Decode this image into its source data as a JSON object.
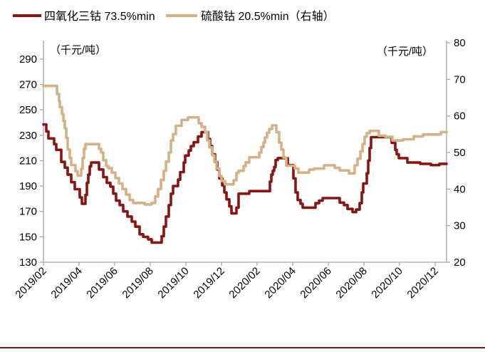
{
  "chart_data": {
    "type": "line",
    "legend": [
      {
        "label": "四氧化三钴 73.5%min"
      },
      {
        "label": "硫酸钴 20.5%min（右轴）"
      }
    ],
    "left_axis": {
      "unit_label": "（千元/吨）",
      "min": 130,
      "max": 290,
      "step": 20,
      "ticks": [
        130,
        150,
        170,
        190,
        210,
        230,
        250,
        270,
        290
      ]
    },
    "right_axis": {
      "unit_label": "（千元/吨）",
      "min": 20,
      "max": 80,
      "step": 10,
      "ticks": [
        20,
        30,
        40,
        50,
        60,
        70,
        80
      ]
    },
    "x_axis": {
      "tick_labels": [
        "2019/02",
        "2019/04",
        "2019/06",
        "2019/08",
        "2019/10",
        "2019/12",
        "2020/02",
        "2020/04",
        "2020/06",
        "2020/08",
        "2020/10",
        "2020/12"
      ],
      "tick_months": [
        1,
        3,
        5,
        7,
        9,
        11,
        13,
        15,
        17,
        19,
        21,
        23
      ],
      "month_origin_label": "2019/01"
    },
    "series": [
      {
        "name": "四氧化三钴 73.5%min",
        "axis": "left",
        "color": "#8A1410",
        "points": [
          [
            1.0,
            238.5
          ],
          [
            1.16,
            233
          ],
          [
            1.28,
            227.5
          ],
          [
            1.6,
            223
          ],
          [
            1.72,
            218.5
          ],
          [
            2.0,
            209
          ],
          [
            2.2,
            204.5
          ],
          [
            2.36,
            199
          ],
          [
            2.56,
            193
          ],
          [
            2.76,
            187.5
          ],
          [
            3.04,
            181
          ],
          [
            3.16,
            176
          ],
          [
            3.36,
            183
          ],
          [
            3.44,
            192.5
          ],
          [
            3.52,
            199
          ],
          [
            3.6,
            205.5
          ],
          [
            3.68,
            208.5
          ],
          [
            4.12,
            203
          ],
          [
            4.36,
            197
          ],
          [
            4.56,
            192.5
          ],
          [
            4.76,
            189.5
          ],
          [
            4.92,
            184
          ],
          [
            5.08,
            178.5
          ],
          [
            5.28,
            175
          ],
          [
            5.48,
            170
          ],
          [
            5.72,
            166
          ],
          [
            5.96,
            162
          ],
          [
            6.16,
            158
          ],
          [
            6.4,
            152
          ],
          [
            6.6,
            150
          ],
          [
            6.88,
            148
          ],
          [
            7.08,
            145.5
          ],
          [
            7.64,
            150.5
          ],
          [
            7.76,
            158
          ],
          [
            7.88,
            166
          ],
          [
            8.04,
            175
          ],
          [
            8.16,
            184
          ],
          [
            8.28,
            190
          ],
          [
            8.56,
            195
          ],
          [
            8.68,
            201
          ],
          [
            8.88,
            208.5
          ],
          [
            8.96,
            214
          ],
          [
            9.16,
            218
          ],
          [
            9.28,
            221.5
          ],
          [
            9.44,
            224.5
          ],
          [
            9.68,
            229
          ],
          [
            9.88,
            232.5
          ],
          [
            10.24,
            227
          ],
          [
            10.36,
            221.5
          ],
          [
            10.48,
            215
          ],
          [
            10.64,
            209
          ],
          [
            10.76,
            203
          ],
          [
            10.88,
            196
          ],
          [
            11.04,
            190.5
          ],
          [
            11.16,
            185
          ],
          [
            11.28,
            179.5
          ],
          [
            11.44,
            174
          ],
          [
            11.56,
            168.5
          ],
          [
            11.84,
            173
          ],
          [
            11.96,
            184
          ],
          [
            12.56,
            186
          ],
          [
            13.72,
            193.5
          ],
          [
            13.8,
            199
          ],
          [
            13.88,
            202
          ],
          [
            13.96,
            205
          ],
          [
            14.04,
            210.5
          ],
          [
            14.16,
            212
          ],
          [
            14.72,
            206.5
          ],
          [
            15.04,
            196
          ],
          [
            15.16,
            185
          ],
          [
            15.28,
            179
          ],
          [
            15.44,
            176
          ],
          [
            15.56,
            173
          ],
          [
            16.28,
            176.5
          ],
          [
            16.48,
            178.5
          ],
          [
            16.68,
            180.5
          ],
          [
            17.64,
            177
          ],
          [
            17.88,
            175
          ],
          [
            18.08,
            172
          ],
          [
            18.36,
            169.5
          ],
          [
            18.56,
            171.5
          ],
          [
            18.76,
            176.5
          ],
          [
            18.88,
            185
          ],
          [
            18.96,
            192
          ],
          [
            19.16,
            200
          ],
          [
            19.24,
            210
          ],
          [
            19.32,
            220
          ],
          [
            19.4,
            228.5
          ],
          [
            20.56,
            224
          ],
          [
            20.76,
            218.5
          ],
          [
            20.84,
            215
          ],
          [
            20.96,
            212
          ],
          [
            21.44,
            208.5
          ],
          [
            22.16,
            207.5
          ],
          [
            22.76,
            206.5
          ],
          [
            23.24,
            207.5
          ],
          [
            23.64,
            207.5
          ]
        ]
      },
      {
        "name": "硫酸钴 20.5%min（右轴）",
        "axis": "right",
        "color": "#D5B286",
        "points": [
          [
            1.0,
            68.2
          ],
          [
            1.76,
            66
          ],
          [
            1.88,
            64
          ],
          [
            1.92,
            62.4
          ],
          [
            2.04,
            60.5
          ],
          [
            2.12,
            58.6
          ],
          [
            2.2,
            56.6
          ],
          [
            2.28,
            54
          ],
          [
            2.36,
            50.8
          ],
          [
            2.48,
            48.5
          ],
          [
            2.56,
            46.6
          ],
          [
            2.8,
            44.9
          ],
          [
            2.92,
            43.7
          ],
          [
            3.12,
            45.5
          ],
          [
            3.2,
            48.5
          ],
          [
            3.28,
            51
          ],
          [
            3.36,
            52.3
          ],
          [
            4.12,
            51
          ],
          [
            4.24,
            50
          ],
          [
            4.36,
            47.9
          ],
          [
            4.52,
            46.3
          ],
          [
            4.64,
            45.7
          ],
          [
            4.84,
            44.5
          ],
          [
            5.04,
            43
          ],
          [
            5.24,
            41.5
          ],
          [
            5.44,
            40
          ],
          [
            5.64,
            38.5
          ],
          [
            5.84,
            37
          ],
          [
            6.04,
            36.2
          ],
          [
            6.68,
            35.8
          ],
          [
            7.08,
            36.2
          ],
          [
            7.28,
            38
          ],
          [
            7.44,
            40
          ],
          [
            7.6,
            42.5
          ],
          [
            7.76,
            45
          ],
          [
            7.88,
            47.5
          ],
          [
            8.04,
            50
          ],
          [
            8.16,
            53.3
          ],
          [
            8.28,
            55
          ],
          [
            8.44,
            57.3
          ],
          [
            8.76,
            58.9
          ],
          [
            9.12,
            59.6
          ],
          [
            9.72,
            58
          ],
          [
            9.88,
            57
          ],
          [
            10.08,
            55.6
          ],
          [
            10.2,
            53.3
          ],
          [
            10.32,
            51.4
          ],
          [
            10.48,
            49.2
          ],
          [
            10.6,
            47.5
          ],
          [
            10.72,
            45.6
          ],
          [
            10.88,
            43.6
          ],
          [
            11.0,
            42.2
          ],
          [
            11.2,
            41.3
          ],
          [
            11.68,
            42.4
          ],
          [
            11.84,
            44.4
          ],
          [
            11.96,
            45
          ],
          [
            12.24,
            46.3
          ],
          [
            12.36,
            47.3
          ],
          [
            12.56,
            48.7
          ],
          [
            13.12,
            50
          ],
          [
            13.24,
            51.5
          ],
          [
            13.36,
            52.7
          ],
          [
            13.44,
            54.1
          ],
          [
            13.56,
            55.4
          ],
          [
            13.68,
            56.4
          ],
          [
            13.84,
            57.4
          ],
          [
            14.08,
            55.6
          ],
          [
            14.24,
            52.7
          ],
          [
            14.36,
            50.8
          ],
          [
            14.48,
            48.6
          ],
          [
            14.64,
            46.4
          ],
          [
            15.12,
            45.6
          ],
          [
            15.32,
            44.5
          ],
          [
            15.92,
            45.3
          ],
          [
            16.2,
            45.6
          ],
          [
            16.76,
            46.5
          ],
          [
            17.36,
            45.8
          ],
          [
            17.64,
            45.1
          ],
          [
            18.16,
            44.3
          ],
          [
            18.48,
            46.5
          ],
          [
            18.64,
            48.3
          ],
          [
            18.8,
            50.3
          ],
          [
            18.92,
            52.3
          ],
          [
            19.04,
            54.3
          ],
          [
            19.16,
            55.3
          ],
          [
            19.32,
            55.9
          ],
          [
            19.84,
            54.6
          ],
          [
            20.2,
            54.3
          ],
          [
            20.6,
            53.3
          ],
          [
            21.2,
            53.6
          ],
          [
            21.8,
            54.4
          ],
          [
            22.32,
            54.9
          ],
          [
            23.32,
            55.6
          ],
          [
            23.64,
            55.6
          ]
        ]
      }
    ],
    "axis_color": "#A6A6A6",
    "footer_rule_color": "#8A1410",
    "legend_position": "top",
    "grid": false
  }
}
